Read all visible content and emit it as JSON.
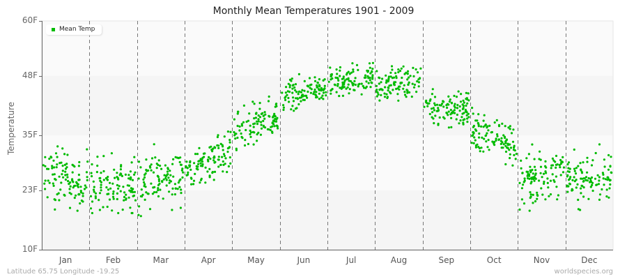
{
  "title": "Monthly Mean Temperatures 1901 - 2009",
  "ylabel": "Temperature",
  "legend": {
    "label": "Mean Temp",
    "color": "#00bb00"
  },
  "footer": {
    "location": "Latitude 65.75 Longitude -19.25",
    "source": "worldspecies.org"
  },
  "y_ticks": [
    {
      "label": "60F",
      "value": 60
    },
    {
      "label": "48F",
      "value": 48
    },
    {
      "label": "35F",
      "value": 35
    },
    {
      "label": "23F",
      "value": 23
    },
    {
      "label": "10F",
      "value": 10
    }
  ],
  "x_ticks": [
    "Jan",
    "Feb",
    "Mar",
    "Apr",
    "May",
    "Jun",
    "Jul",
    "Aug",
    "Sep",
    "Oct",
    "Nov",
    "Dec"
  ],
  "chart_data": {
    "type": "scatter",
    "title": "Monthly Mean Temperatures 1901 - 2009",
    "xlabel": "",
    "ylabel": "Temperature",
    "ylim": [
      10,
      60
    ],
    "categories": [
      "Jan",
      "Feb",
      "Mar",
      "Apr",
      "May",
      "Jun",
      "Jul",
      "Aug",
      "Sep",
      "Oct",
      "Nov",
      "Dec"
    ],
    "series": [
      {
        "name": "Mean Temp",
        "color": "#00bb00",
        "points_per_month": 109,
        "month_start_mean": [
          26,
          24,
          24,
          27,
          35,
          43,
          46,
          46,
          41,
          36,
          25,
          25
        ],
        "month_end_mean": [
          25,
          24,
          27,
          32,
          39,
          46,
          48,
          47,
          41,
          33,
          27,
          26
        ],
        "spread_sd": [
          4.0,
          4.0,
          4.0,
          3.0,
          3.0,
          2.2,
          2.0,
          2.2,
          2.8,
          3.2,
          3.5,
          3.5
        ],
        "approx_min": [
          16,
          18,
          15,
          22,
          30,
          37,
          40,
          40,
          35,
          24,
          15,
          17
        ],
        "approx_max": [
          34,
          36,
          36,
          36,
          44,
          50,
          52,
          51,
          46,
          41,
          33,
          34
        ]
      }
    ],
    "grid": {
      "horizontal_bands": true,
      "vertical_dashed_month_dividers": true
    },
    "legend_position": "top-left"
  }
}
